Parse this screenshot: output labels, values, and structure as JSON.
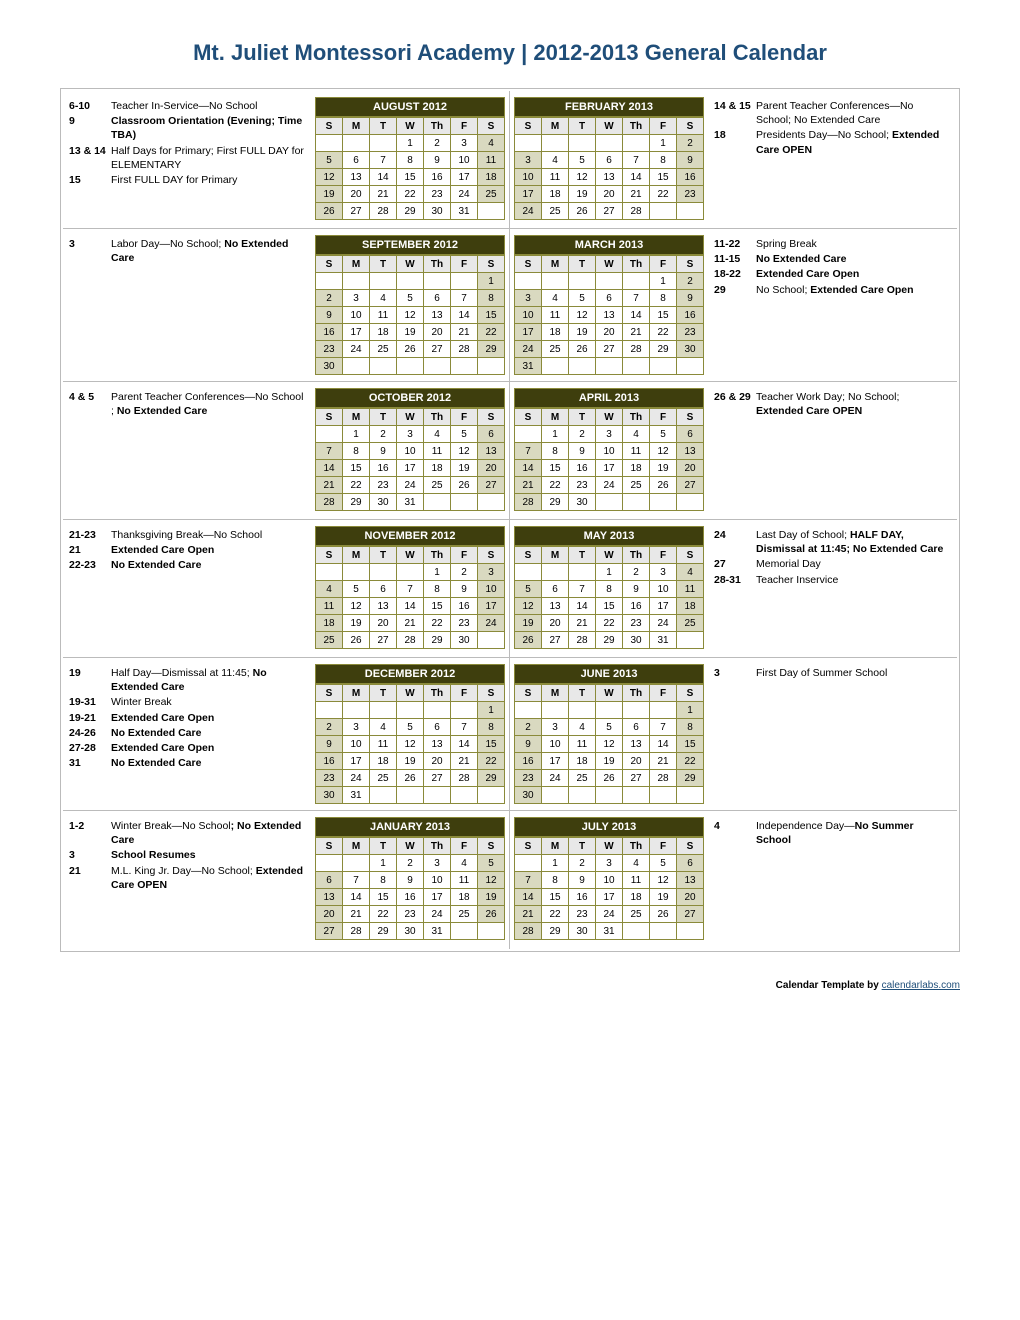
{
  "title": "Mt. Juliet Montessori Academy | 2012-2013 General Calendar",
  "footer_label": "Calendar Template by ",
  "footer_link": "calendarlabs.com",
  "day_headers": [
    "S",
    "M",
    "T",
    "W",
    "Th",
    "F",
    "S"
  ],
  "colors": {
    "title": "#1f4e79",
    "month_header_bg": "#3e3e0d",
    "month_header_fg": "#ffffff",
    "grid_border": "#8a8a3a",
    "weekend_bg": "#d9d9c0",
    "header_row_bg": "#e8e8e8",
    "outer_border": "#bbbbbb"
  },
  "rows": [
    {
      "left": {
        "events_html": "<div class='ev'><span class='ev-date'>6-10</span><span class='ev-text'>Teacher In-Service—No School</span></div><div class='ev'><span class='ev-date'>9</span><span class='ev-text'><b>Classroom Orientation (Evening; Time TBA)</b></span></div><div class='ev'><span class='ev-date'>13 &amp; 14</span><span class='ev-text'>Half Days for Primary; First FULL DAY for ELEMENTARY</span></div><div class='ev'><span class='ev-date'>15</span><span class='ev-text'>First FULL DAY for Primary</span></div>",
        "month": {
          "name": "AUGUST 2012",
          "start": 3,
          "days": 31
        }
      },
      "right": {
        "month": {
          "name": "FEBRUARY 2013",
          "start": 5,
          "days": 28
        },
        "events_html": "<div class='ev'><span class='ev-date'>14 &amp; 15</span><span class='ev-text'>Parent Teacher Conferences—No School; No Extended Care</span></div><div class='ev'><span class='ev-date'>18</span><span class='ev-text'>Presidents Day—No School; <b>Extended Care OPEN</b></span></div>"
      }
    },
    {
      "left": {
        "events_html": "<div class='ev'><span class='ev-date'>3</span><span class='ev-text'>Labor Day—No School; <b>No Extended Care</b></span></div>",
        "month": {
          "name": "SEPTEMBER 2012",
          "start": 6,
          "days": 30
        }
      },
      "right": {
        "month": {
          "name": "MARCH 2013",
          "start": 5,
          "days": 31
        },
        "events_html": "<div class='ev'><span class='ev-date'>11-22</span><span class='ev-text'>Spring Break</span></div><div class='ev'><span class='ev-date'>11-15</span><span class='ev-text'><b>No Extended Care</b></span></div><div class='ev'><span class='ev-date'>18-22</span><span class='ev-text'><b>Extended Care Open</b></span></div><div class='ev'><span class='ev-date'>29</span><span class='ev-text'>No School; <b>Extended Care Open</b></span></div>"
      }
    },
    {
      "left": {
        "events_html": "<div class='ev'><span class='ev-date'>4 &amp; 5</span><span class='ev-text'>Parent Teacher Conferences—No School ; <b>No Extended Care</b></span></div>",
        "month": {
          "name": "OCTOBER 2012",
          "start": 1,
          "days": 31
        }
      },
      "right": {
        "month": {
          "name": "APRIL 2013",
          "start": 1,
          "days": 30
        },
        "events_html": "<div class='ev'><span class='ev-date'>26 &amp; 29</span><span class='ev-text'>Teacher Work Day; No School; <b>Extended Care OPEN</b></span></div>"
      }
    },
    {
      "left": {
        "events_html": "<div class='ev'><span class='ev-date'>21-23</span><span class='ev-text'>Thanksgiving Break—No School</span></div><div class='ev'><span class='ev-date'>21</span><span class='ev-text'><b>Extended Care Open</b></span></div><div class='ev'><span class='ev-date'>22-23</span><span class='ev-text'><b>No Extended Care</b></span></div>",
        "month": {
          "name": "NOVEMBER 2012",
          "start": 4,
          "days": 30
        }
      },
      "right": {
        "month": {
          "name": "MAY 2013",
          "start": 3,
          "days": 31
        },
        "events_html": "<div class='ev'><span class='ev-date'>24</span><span class='ev-text'>Last Day of School; <b>HALF DAY, Dismissal at 11:45; No Extended Care</b></span></div><div class='ev'><span class='ev-date'>27</span><span class='ev-text'>Memorial Day</span></div><div class='ev'><span class='ev-date'>28-31</span><span class='ev-text'>Teacher Inservice</span></div>"
      }
    },
    {
      "left": {
        "events_html": "<div class='ev'><span class='ev-date'>19</span><span class='ev-text'>Half Day—Dismissal at 11:45; <b>No Extended Care</b></span></div><div class='ev'><span class='ev-date'>19-31</span><span class='ev-text'>Winter Break</span></div><div class='ev'><span class='ev-date'>19-21</span><span class='ev-text'><b>Extended Care Open</b></span></div><div class='ev'><span class='ev-date'>24-26</span><span class='ev-text'><b>No Extended Care</b></span></div><div class='ev'><span class='ev-date'>27-28</span><span class='ev-text'><b>Extended Care Open</b></span></div><div class='ev'><span class='ev-date'>31</span><span class='ev-text'><b>No Extended Care</b></span></div>",
        "month": {
          "name": "DECEMBER 2012",
          "start": 6,
          "days": 31
        }
      },
      "right": {
        "month": {
          "name": "JUNE 2013",
          "start": 6,
          "days": 30
        },
        "events_html": "<div class='ev'><span class='ev-date'>3</span><span class='ev-text'>First Day of Summer School</span></div>"
      }
    },
    {
      "left": {
        "events_html": "<div class='ev'><span class='ev-date'>1-2</span><span class='ev-text'>Winter Break—No School<b>; No Extended Care</b></span></div><div class='ev'><span class='ev-date'>3</span><span class='ev-text'><b>School Resumes</b></span></div><div class='ev'><span class='ev-date'>21</span><span class='ev-text'>M.L. King Jr. Day—No School; <b>Extended Care OPEN</b></span></div>",
        "month": {
          "name": "JANUARY 2013",
          "start": 2,
          "days": 31
        }
      },
      "right": {
        "month": {
          "name": "JULY 2013",
          "start": 1,
          "days": 31
        },
        "events_html": "<div class='ev'><span class='ev-date'>4</span><span class='ev-text'>Independence Day—<b>No Summer School</b></span></div>"
      }
    }
  ]
}
